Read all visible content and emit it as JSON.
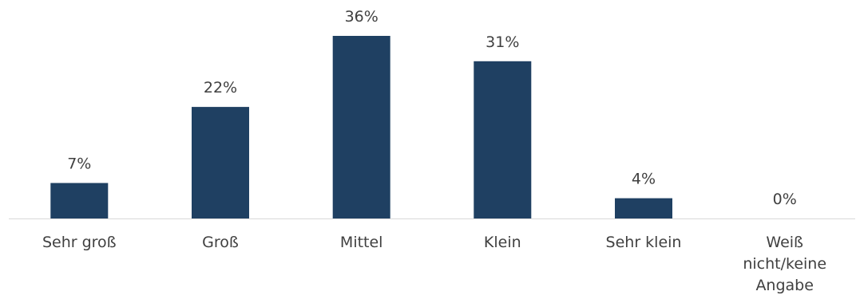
{
  "chart_data": {
    "type": "bar",
    "title": "",
    "xlabel": "",
    "ylabel": "",
    "categories": [
      "Sehr groß",
      "Groß",
      "Mittel",
      "Klein",
      "Sehr klein",
      "Weiß nicht/keine Angabe"
    ],
    "category_label_lines": [
      [
        "Sehr groß"
      ],
      [
        "Groß"
      ],
      [
        "Mittel"
      ],
      [
        "Klein"
      ],
      [
        "Sehr klein"
      ],
      [
        "Weiß",
        "nicht/keine",
        "Angabe"
      ]
    ],
    "values": [
      7,
      22,
      36,
      31,
      4,
      0
    ],
    "data_labels": [
      "7%",
      "22%",
      "36%",
      "31%",
      "4%",
      "0%"
    ],
    "ylim": [
      0,
      36
    ],
    "grid": false,
    "legend": "none",
    "colors": {
      "bar": "#1f4062",
      "axis": "#d9d9d9",
      "text": "#404040"
    }
  }
}
